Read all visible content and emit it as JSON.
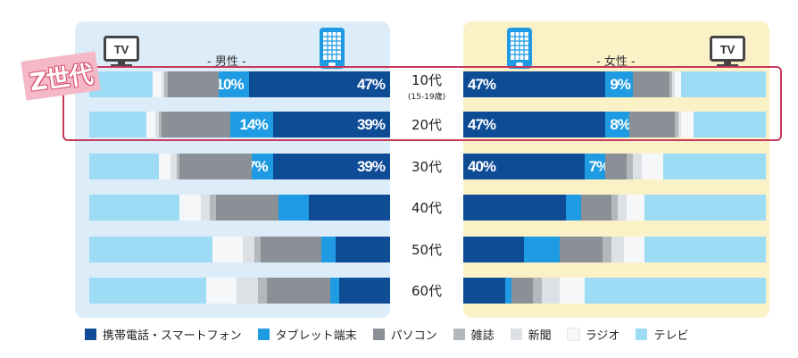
{
  "labels": {
    "male": "- 男性 -",
    "female": "- 女性 -",
    "z_generation": "Z世代",
    "tv_icon_text": "TV"
  },
  "colors": {
    "phone": "#0e4c96",
    "tablet": "#1e9be2",
    "pc": "#8a9096",
    "magazine": "#b3b8bd",
    "newspaper": "#dde1e5",
    "radio": "#f6f7f8",
    "tv": "#9edcf5",
    "z_highlight": "#c8385a"
  },
  "legend": [
    "携帯電話・スマートフォン",
    "タブレット端末",
    "パソコン",
    "雑誌",
    "新聞",
    "ラジオ",
    "テレビ"
  ],
  "chart_data": {
    "type": "bar",
    "orientation": "horizontal",
    "stacked": true,
    "categories": [
      {
        "label": "10代",
        "sub": "(15-19歳)"
      },
      {
        "label": "20代",
        "sub": ""
      },
      {
        "label": "30代",
        "sub": ""
      },
      {
        "label": "40代",
        "sub": ""
      },
      {
        "label": "50代",
        "sub": ""
      },
      {
        "label": "60代",
        "sub": ""
      }
    ],
    "series_order": [
      "携帯電話・スマートフォン",
      "タブレット端末",
      "パソコン",
      "雑誌",
      "新聞",
      "ラジオ",
      "テレビ"
    ],
    "male": [
      {
        "values": [
          47,
          10,
          17,
          1,
          1,
          3,
          21
        ],
        "labels": [
          "47%",
          "10%",
          "",
          "",
          "",
          "",
          ""
        ]
      },
      {
        "values": [
          39,
          14,
          23,
          1,
          1,
          3,
          19
        ],
        "labels": [
          "39%",
          "14%",
          "",
          "",
          "",
          "",
          ""
        ]
      },
      {
        "values": [
          39,
          7,
          24,
          1,
          2,
          4,
          23
        ],
        "labels": [
          "39%",
          "7%",
          "",
          "",
          "",
          "",
          ""
        ]
      },
      {
        "values": [
          27,
          10,
          21,
          2,
          3,
          7,
          30
        ],
        "labels": [
          "",
          "",
          "",
          "",
          "",
          "",
          ""
        ]
      },
      {
        "values": [
          18,
          5,
          20,
          2,
          4,
          10,
          41
        ],
        "labels": [
          "",
          "",
          "",
          "",
          "",
          "",
          ""
        ]
      },
      {
        "values": [
          17,
          3,
          21,
          3,
          7,
          10,
          39
        ],
        "labels": [
          "",
          "",
          "",
          "",
          "",
          "",
          ""
        ]
      }
    ],
    "female": [
      {
        "values": [
          47,
          9,
          12,
          1,
          1,
          2,
          28
        ],
        "labels": [
          "47%",
          "9%",
          "",
          "",
          "",
          "",
          ""
        ]
      },
      {
        "values": [
          47,
          8,
          15,
          1,
          1,
          4,
          24
        ],
        "labels": [
          "47%",
          "8%",
          "",
          "",
          "",
          "",
          ""
        ]
      },
      {
        "values": [
          40,
          7,
          7,
          2,
          3,
          7,
          34
        ],
        "labels": [
          "40%",
          "7%",
          "",
          "",
          "",
          "",
          ""
        ]
      },
      {
        "values": [
          34,
          5,
          10,
          2,
          3,
          6,
          40
        ],
        "labels": [
          "",
          "",
          "",
          "",
          "",
          "",
          ""
        ]
      },
      {
        "values": [
          20,
          12,
          14,
          3,
          4,
          7,
          40
        ],
        "labels": [
          "",
          "",
          "",
          "",
          "",
          "",
          ""
        ]
      },
      {
        "values": [
          14,
          2,
          7,
          3,
          6,
          8,
          60
        ],
        "labels": [
          "",
          "",
          "",
          "",
          "",
          "",
          ""
        ]
      }
    ]
  }
}
